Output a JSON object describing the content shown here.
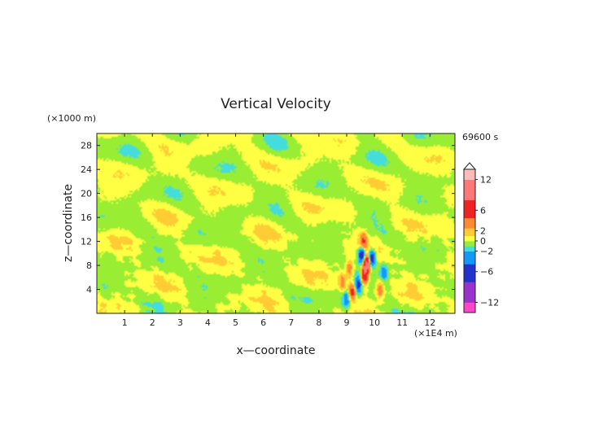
{
  "chart_data": {
    "type": "heatmap",
    "title": "Vertical Velocity",
    "time_label": "69600 s",
    "xlabel": "x—coordinate",
    "ylabel": "z—coordinate",
    "x_unit": "(×1E4 m)",
    "y_unit": "(×1000 m)",
    "xlim": [
      0,
      12.9
    ],
    "ylim": [
      0,
      30
    ],
    "x_ticks": [
      "1",
      "2",
      "3",
      "4",
      "5",
      "6",
      "7",
      "8",
      "9",
      "10",
      "11",
      "12"
    ],
    "y_ticks": [
      "4",
      "8",
      "12",
      "16",
      "20",
      "24",
      "28"
    ],
    "colorbar": {
      "range": [
        -14,
        14
      ],
      "tick_labels": [
        "12",
        "6",
        "2",
        "0",
        "−2",
        "−6",
        "−12"
      ],
      "tick_values": [
        12,
        6,
        2,
        0,
        -2,
        -6,
        -12
      ],
      "extend": "max"
    },
    "color_scale": [
      {
        "v": -14,
        "color": "#ff44cc"
      },
      {
        "v": -10,
        "color": "#9933cc"
      },
      {
        "v": -6,
        "color": "#2233cc"
      },
      {
        "v": -3,
        "color": "#1199ff"
      },
      {
        "v": -1.5,
        "color": "#44dddd"
      },
      {
        "v": -0.5,
        "color": "#99ee33"
      },
      {
        "v": 0.5,
        "color": "#ffff44"
      },
      {
        "v": 1.5,
        "color": "#ffcc33"
      },
      {
        "v": 3,
        "color": "#ff8833"
      },
      {
        "v": 6,
        "color": "#ee2222"
      },
      {
        "v": 10,
        "color": "#ff7777"
      },
      {
        "v": 14,
        "color": "#ffbbbb"
      }
    ],
    "field_description": "Mostly weak alternating updraft/downdraft bands (|w| < ~1) tilted across the domain; strong localized cells of about +/-10 between x = 9 and 10.5, z = 2 to 12.",
    "strong_cells": [
      {
        "x": 9.72,
        "z": 8.2,
        "w": 11
      },
      {
        "x": 9.55,
        "z": 9.8,
        "w": -9
      },
      {
        "x": 9.9,
        "z": 9.2,
        "w": -8
      },
      {
        "x": 9.65,
        "z": 6.2,
        "w": 8
      },
      {
        "x": 9.42,
        "z": 4.8,
        "w": -6
      },
      {
        "x": 9.2,
        "z": 3.6,
        "w": 6
      },
      {
        "x": 9.6,
        "z": 12.0,
        "w": 5
      },
      {
        "x": 9.1,
        "z": 7.4,
        "w": 4
      },
      {
        "x": 9.0,
        "z": 2.4,
        "w": -4
      },
      {
        "x": 10.2,
        "z": 4.0,
        "w": 4
      },
      {
        "x": 10.35,
        "z": 7.0,
        "w": -3
      },
      {
        "x": 8.85,
        "z": 5.2,
        "w": 3
      }
    ]
  }
}
